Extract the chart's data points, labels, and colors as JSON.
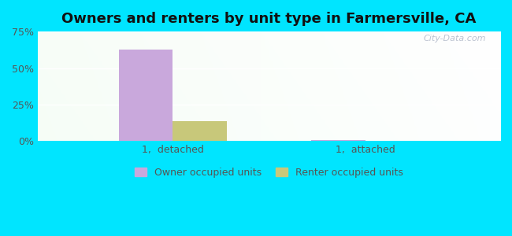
{
  "title": "Owners and renters by unit type in Farmersville, CA",
  "categories": [
    "1,  detached",
    "1,  attached"
  ],
  "owner_values": [
    62.5,
    0.8
  ],
  "renter_values": [
    13.5,
    0.5
  ],
  "owner_color": "#c9a8dc",
  "renter_color": "#c8c87a",
  "ylim": [
    0,
    75
  ],
  "yticks": [
    0,
    25,
    50,
    75
  ],
  "ytick_labels": [
    "0%",
    "25%",
    "50%",
    "75%"
  ],
  "bar_width": 0.28,
  "background_outer": "#00e5ff",
  "grid_color": "#ffffff",
  "watermark": "City-Data.com",
  "title_fontsize": 13,
  "legend_labels": [
    "Owner occupied units",
    "Renter occupied units"
  ]
}
